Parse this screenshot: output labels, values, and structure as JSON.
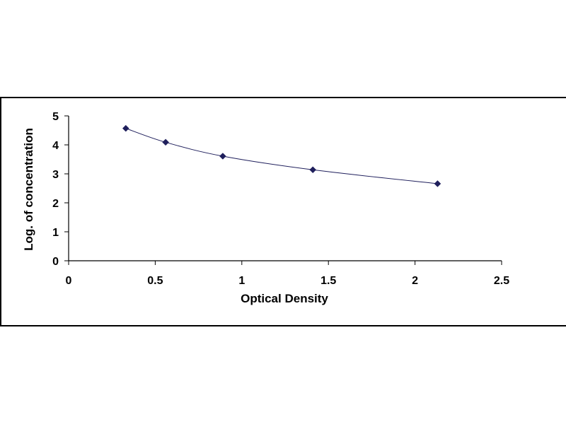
{
  "chart_data": {
    "type": "scatter",
    "title": "",
    "xlabel": "Optical Density",
    "ylabel": "Log. of concentration",
    "xlim": [
      0,
      2.5
    ],
    "ylim": [
      0,
      5
    ],
    "x_ticks": [
      "0",
      "0.5",
      "1",
      "1.5",
      "2",
      "2.5"
    ],
    "y_ticks": [
      "0",
      "1",
      "2",
      "3",
      "4",
      "5"
    ],
    "grid": false,
    "legend": "none",
    "marker": "diamond",
    "trendline": "smooth curve through points",
    "series": [
      {
        "x": [
          0.33,
          0.56,
          0.89,
          1.41,
          2.13
        ],
        "y": [
          4.57,
          4.09,
          3.61,
          3.14,
          2.66
        ],
        "color": "#1f1f5c"
      }
    ]
  }
}
